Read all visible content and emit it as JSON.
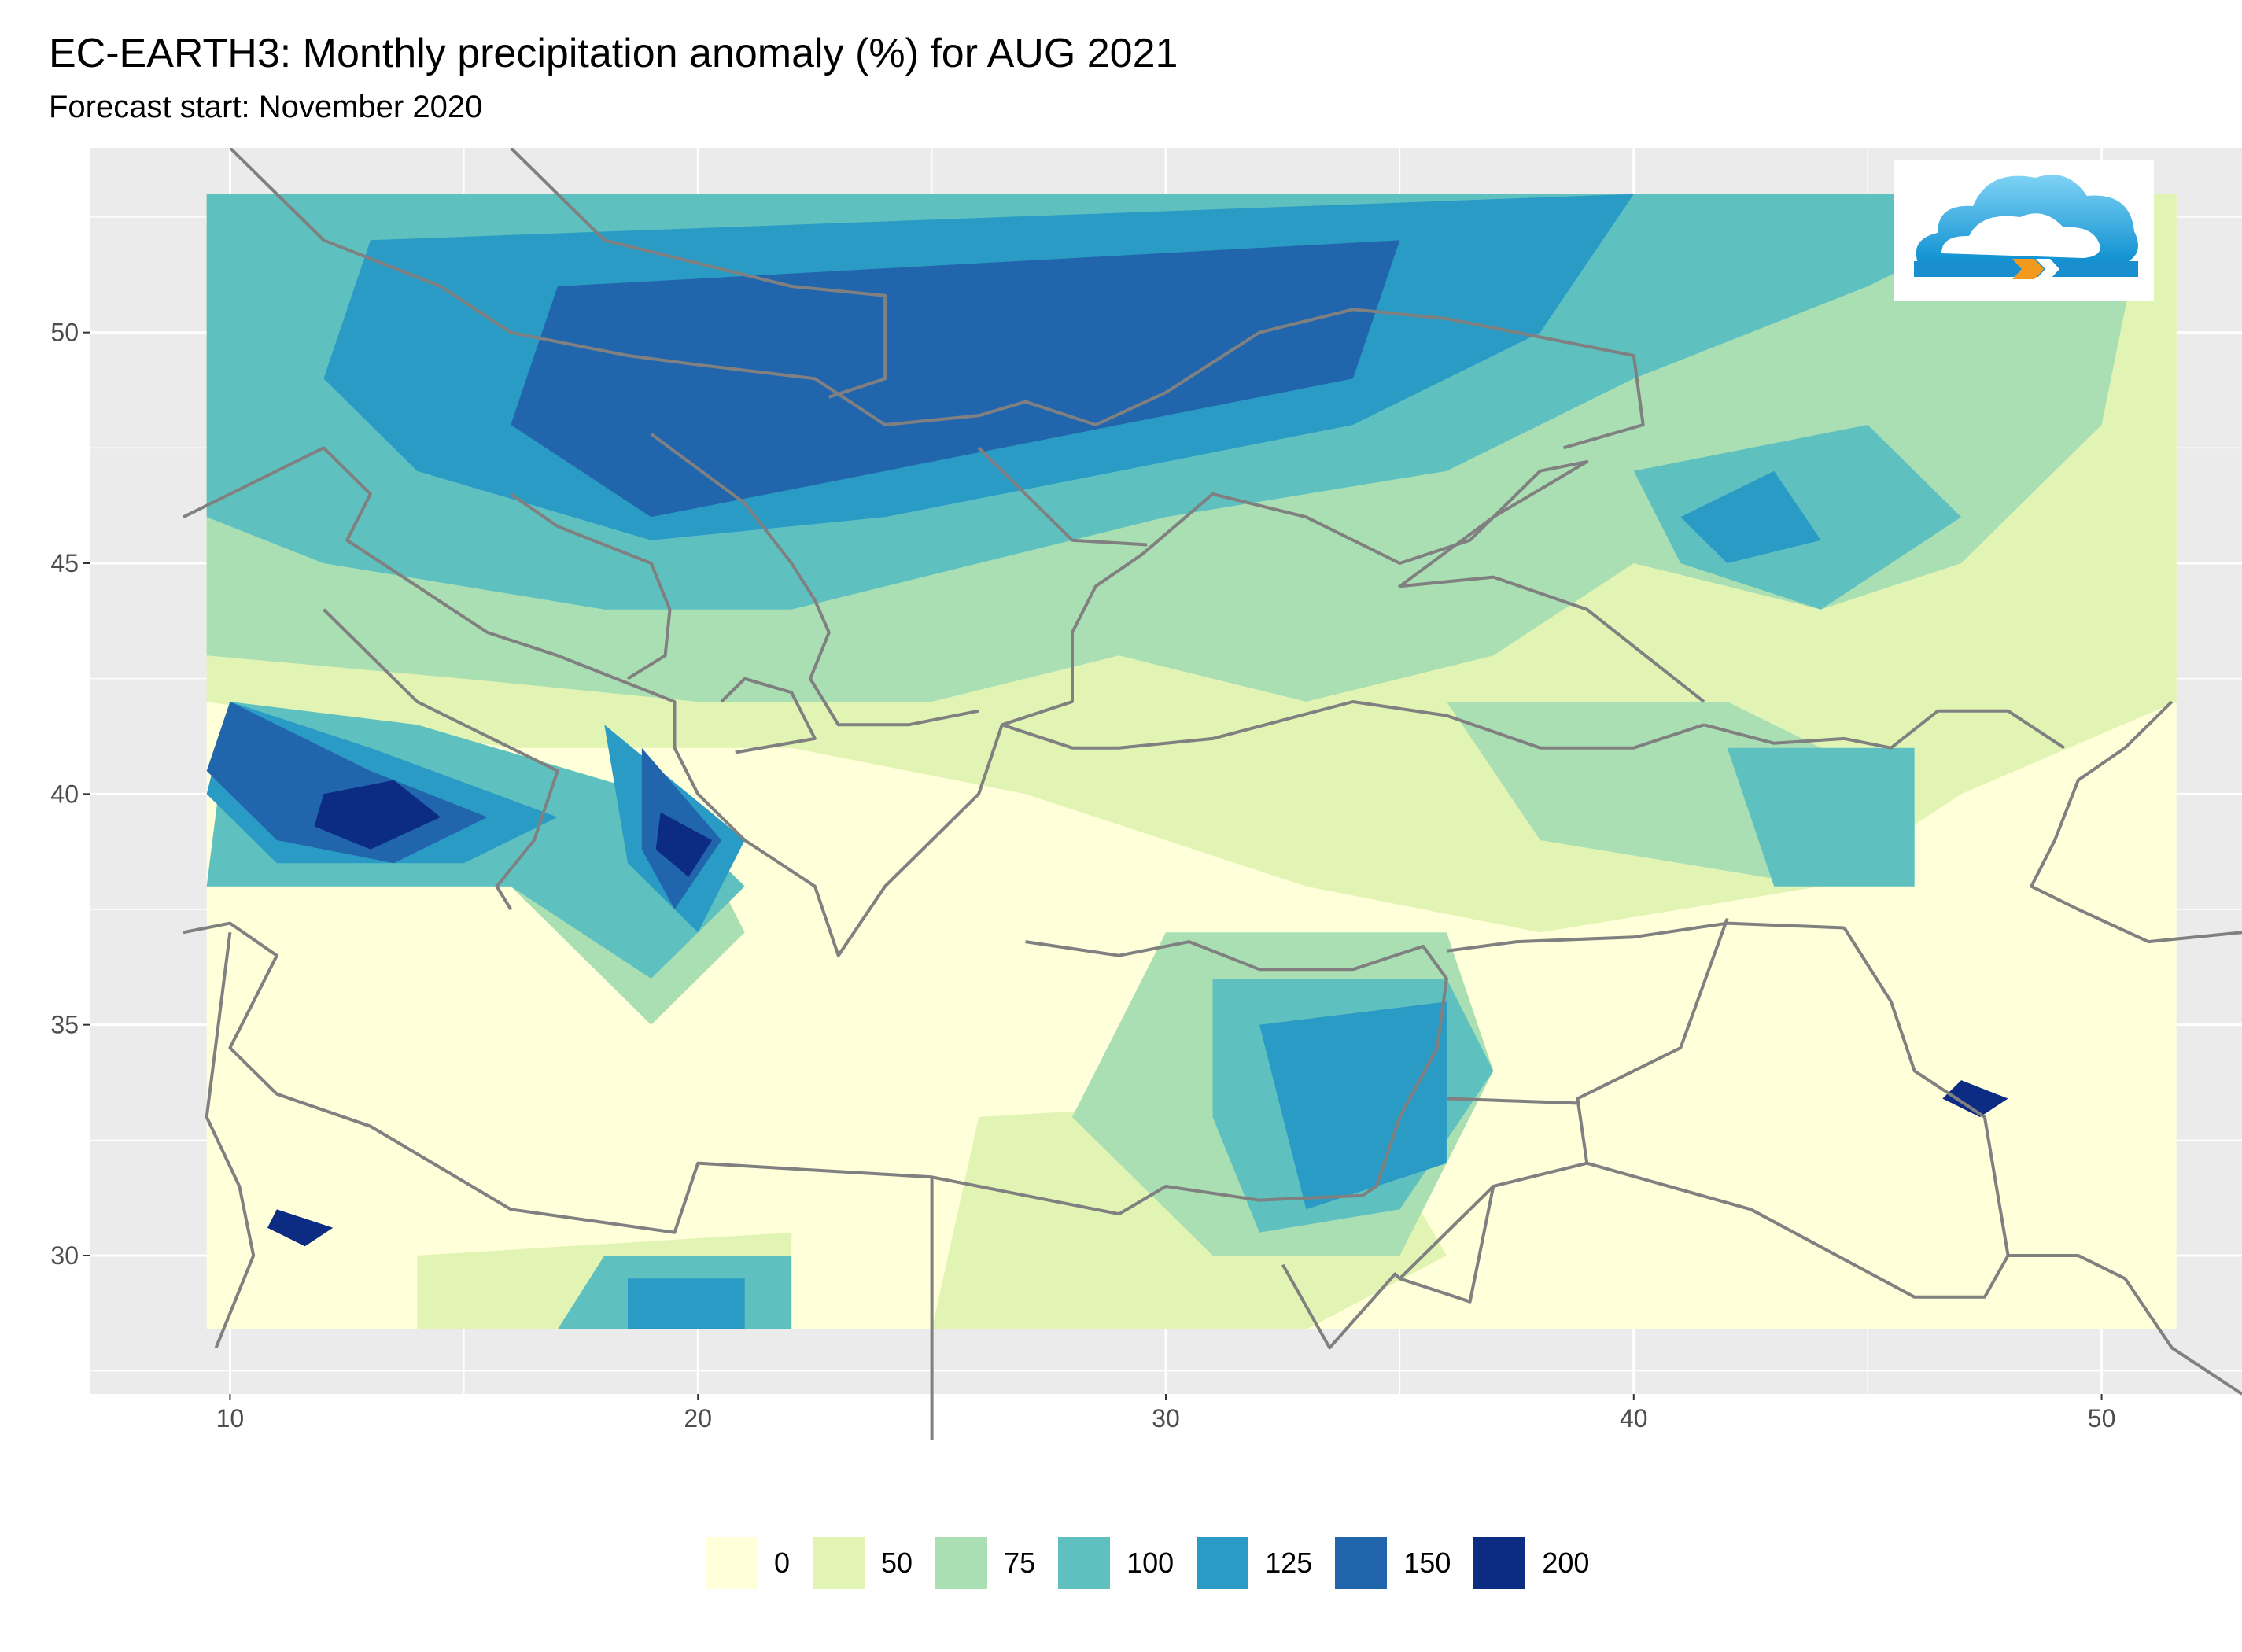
{
  "title": "EC-EARTH3: Monthly precipitation anomaly (%) for AUG 2021",
  "subtitle": "Forecast start: November 2020",
  "map": {
    "lon_range": [
      7,
      53
    ],
    "lat_range": [
      27,
      54
    ],
    "x_ticks": [
      {
        "value": 10,
        "label": "10"
      },
      {
        "value": 20,
        "label": "20"
      },
      {
        "value": 30,
        "label": "30"
      },
      {
        "value": 40,
        "label": "40"
      },
      {
        "value": 50,
        "label": "50"
      }
    ],
    "y_ticks": [
      {
        "value": 30,
        "label": "30"
      },
      {
        "value": 35,
        "label": "35"
      },
      {
        "value": 40,
        "label": "40"
      },
      {
        "value": 45,
        "label": "45"
      },
      {
        "value": 50,
        "label": "50"
      }
    ],
    "data_extent": {
      "lon": [
        9.5,
        51.6
      ],
      "lat": [
        28.4,
        53
      ]
    },
    "panel_background": "#ebebeb",
    "border_color": "#808080"
  },
  "legend": {
    "items": [
      {
        "label": "0",
        "color": "#ffffd9"
      },
      {
        "label": "50",
        "color": "#e2f4b4"
      },
      {
        "label": "75",
        "color": "#aadfb4"
      },
      {
        "label": "100",
        "color": "#5fc0c0"
      },
      {
        "label": "125",
        "color": "#2a9bc4"
      },
      {
        "label": "150",
        "color": "#2166ac"
      },
      {
        "label": "200",
        "color": "#0c2c84"
      }
    ]
  },
  "logo": {
    "icon": "cloud-logo-icon"
  }
}
